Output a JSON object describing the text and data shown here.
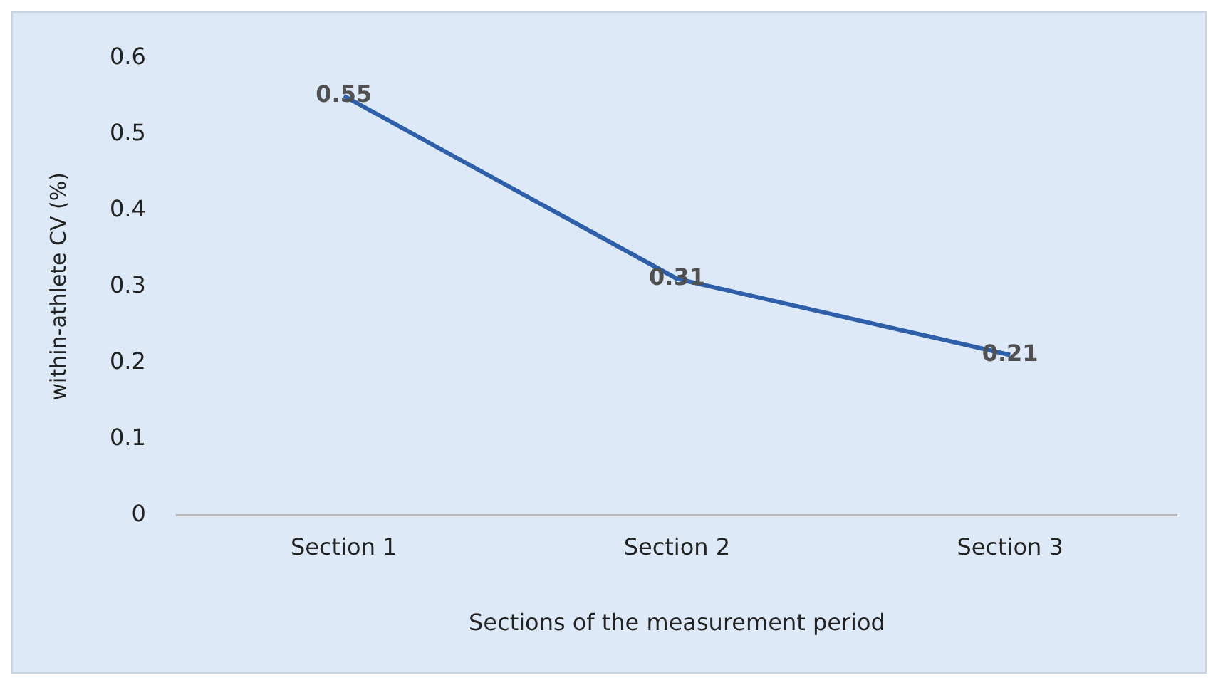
{
  "chart_data": {
    "type": "line",
    "xlabel": "Sections of the measurement period",
    "ylabel": "within-athlete CV (%)",
    "categories": [
      "Section 1",
      "Section 2",
      "Section 3"
    ],
    "series": [
      {
        "color": "#2e5fa8",
        "values": [
          0.55,
          0.31,
          0.21
        ]
      }
    ],
    "ylim": [
      0,
      0.6
    ],
    "yticks": [
      0,
      0.1,
      0.2,
      0.3,
      0.4,
      0.5,
      0.6
    ],
    "grid": false,
    "legend": false,
    "marker": "none",
    "line_style": "solid",
    "data_labels": true
  }
}
